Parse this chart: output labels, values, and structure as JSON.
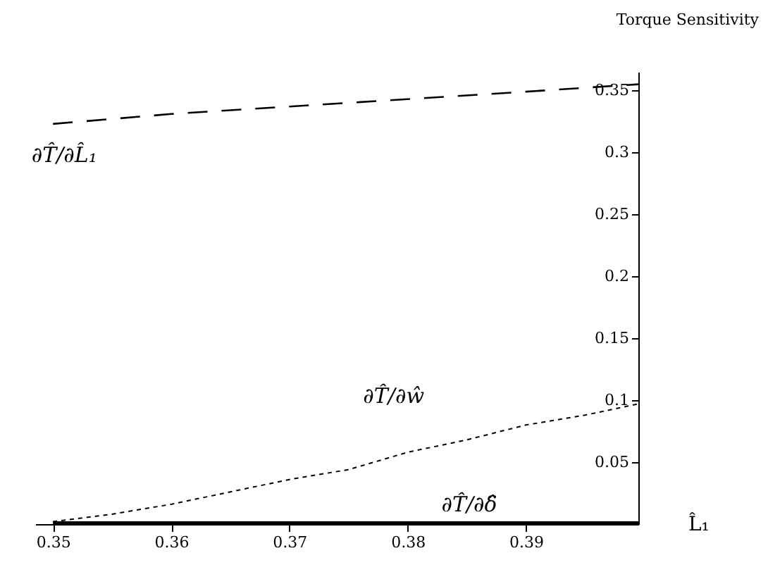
{
  "chart_data": {
    "type": "line",
    "xlabel": "L̂₁",
    "ylabel": "Torque Sensitivity",
    "xlim": [
      0.3485,
      0.3995
    ],
    "ylim": [
      0,
      0.365
    ],
    "xticks": [
      0.35,
      0.36,
      0.37,
      0.38,
      0.39
    ],
    "yticks": [
      0.05,
      0.1,
      0.15,
      0.2,
      0.25,
      0.3,
      0.35
    ],
    "grid": false,
    "series": [
      {
        "name": "∂T̂/∂L̂₁",
        "color": "#000000",
        "line_style": "dashed",
        "x": [
          0.35,
          0.36,
          0.37,
          0.38,
          0.39,
          0.3995
        ],
        "values": [
          0.323,
          0.331,
          0.337,
          0.343,
          0.349,
          0.355
        ]
      },
      {
        "name": "∂T̂/∂ŵ",
        "color": "#000000",
        "line_style": "dotted",
        "x": [
          0.35,
          0.355,
          0.36,
          0.365,
          0.37,
          0.375,
          0.38,
          0.385,
          0.39,
          0.395,
          0.3995
        ],
        "values": [
          0.002,
          0.008,
          0.016,
          0.026,
          0.036,
          0.044,
          0.058,
          0.068,
          0.08,
          0.088,
          0.097
        ]
      },
      {
        "name": "∂T̂/∂δ̂",
        "color": "#000000",
        "line_style": "solid",
        "x": [
          0.35,
          0.3995
        ],
        "values": [
          0,
          0
        ]
      }
    ]
  }
}
